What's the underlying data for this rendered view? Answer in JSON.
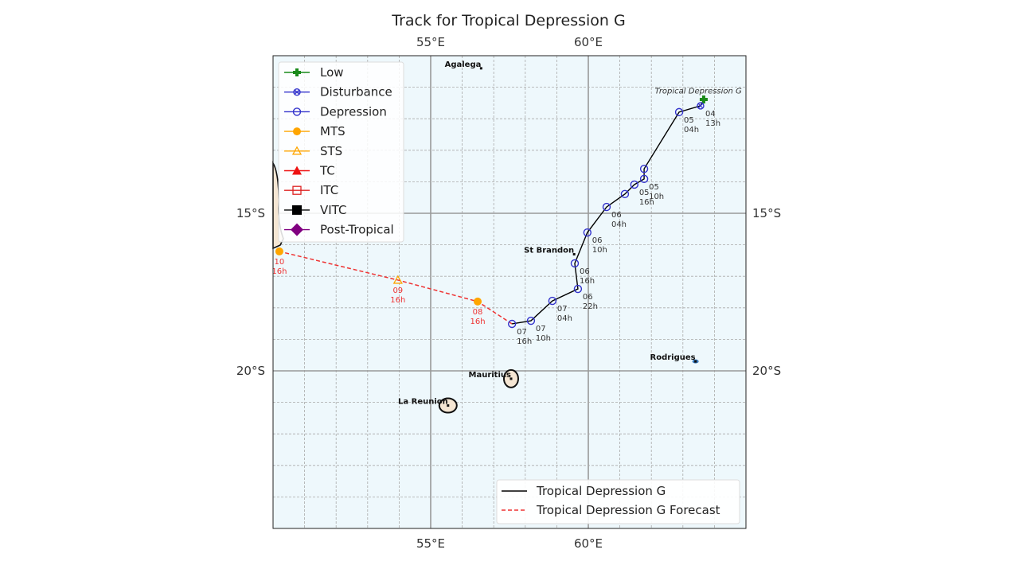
{
  "chart_data": {
    "type": "map-track",
    "title": "Track for Tropical Depression G",
    "extent": {
      "lon": [
        50,
        65
      ],
      "lat": [
        -25,
        -10
      ]
    },
    "grid": {
      "major_lon": [
        55,
        60
      ],
      "major_lat": [
        -15,
        -20
      ],
      "minor_step_deg": 1
    },
    "lon_ticks": [
      {
        "value": 55,
        "label": "55°E"
      },
      {
        "value": 60,
        "label": "60°E"
      }
    ],
    "lat_ticks": [
      {
        "value": -15,
        "label": "15°S"
      },
      {
        "value": -20,
        "label": "20°S"
      }
    ],
    "storm_label": {
      "text": "Tropical Depression G",
      "lon": 62.1,
      "lat": -11.1
    },
    "track": [
      {
        "lon": 63.66,
        "lat": -11.39,
        "cat": "Low",
        "day": "",
        "hour": ""
      },
      {
        "lon": 63.56,
        "lat": -11.59,
        "cat": "Disturbance",
        "day": "04",
        "hour": "13h"
      },
      {
        "lon": 62.88,
        "lat": -11.79,
        "cat": "Depression",
        "day": "05",
        "hour": "04h"
      },
      {
        "lon": 61.77,
        "lat": -13.59,
        "cat": "Depression",
        "day": "",
        "hour": ""
      },
      {
        "lon": 61.77,
        "lat": -13.91,
        "cat": "Depression",
        "day": "05",
        "hour": "10h"
      },
      {
        "lon": 61.46,
        "lat": -14.09,
        "cat": "Depression",
        "day": "05",
        "hour": "16h"
      },
      {
        "lon": 61.16,
        "lat": -14.39,
        "cat": "Depression",
        "day": "",
        "hour": ""
      },
      {
        "lon": 60.58,
        "lat": -14.8,
        "cat": "Depression",
        "day": "06",
        "hour": "04h"
      },
      {
        "lon": 59.97,
        "lat": -15.61,
        "cat": "Depression",
        "day": "06",
        "hour": "10h"
      },
      {
        "lon": 59.57,
        "lat": -16.59,
        "cat": "Depression",
        "day": "06",
        "hour": "16h"
      },
      {
        "lon": 59.67,
        "lat": -17.4,
        "cat": "Depression",
        "day": "06",
        "hour": "22h"
      },
      {
        "lon": 58.86,
        "lat": -17.78,
        "cat": "Depression",
        "day": "07",
        "hour": "04h"
      },
      {
        "lon": 58.18,
        "lat": -18.41,
        "cat": "Depression",
        "day": "07",
        "hour": "10h"
      },
      {
        "lon": 57.58,
        "lat": -18.51,
        "cat": "Depression",
        "day": "07",
        "hour": "16h"
      }
    ],
    "forecast": [
      {
        "lon": 57.58,
        "lat": -18.51,
        "cat": "",
        "day": "",
        "hour": ""
      },
      {
        "lon": 56.49,
        "lat": -17.8,
        "cat": "MTS",
        "day": "08",
        "hour": "16h"
      },
      {
        "lon": 53.96,
        "lat": -17.12,
        "cat": "STS",
        "day": "09",
        "hour": "16h"
      },
      {
        "lon": 50.2,
        "lat": -16.21,
        "cat": "MTS",
        "day": "10",
        "hour": "16h"
      }
    ],
    "places": [
      {
        "name": "Agalega",
        "lon": 56.6,
        "lat": -10.4
      },
      {
        "name": "St Brandon",
        "lon": 59.55,
        "lat": -16.3
      },
      {
        "name": "Mauritius",
        "lon": 57.55,
        "lat": -20.25
      },
      {
        "name": "La Reunion",
        "lon": 55.55,
        "lat": -21.1
      },
      {
        "name": "Rodrigues",
        "lon": 63.4,
        "lat": -19.7
      }
    ],
    "category_legend": [
      {
        "label": "Low",
        "marker": "plus-filled",
        "color": "#1a8a1a"
      },
      {
        "label": "Disturbance",
        "marker": "x-circle",
        "color": "#3333cc"
      },
      {
        "label": "Depression",
        "marker": "circle-open",
        "color": "#3333cc"
      },
      {
        "label": "MTS",
        "marker": "circle-filled",
        "color": "#ffa500"
      },
      {
        "label": "STS",
        "marker": "triangle-open",
        "color": "#ffa500"
      },
      {
        "label": "TC",
        "marker": "triangle-filled",
        "color": "#ee1111"
      },
      {
        "label": "ITC",
        "marker": "square-open",
        "color": "#dd2222"
      },
      {
        "label": "VITC",
        "marker": "square-filled",
        "color": "#000000"
      },
      {
        "label": "Post-Tropical",
        "marker": "diamond-filled",
        "color": "#800080"
      }
    ],
    "line_legend": [
      {
        "label": "Tropical Depression G",
        "style": "solid",
        "color": "#000000"
      },
      {
        "label": "Tropical Depression G Forecast",
        "style": "dashed",
        "color": "#ee3333"
      }
    ],
    "ocean_color": "#eef8fc",
    "land_color": "#f5e6d3"
  }
}
